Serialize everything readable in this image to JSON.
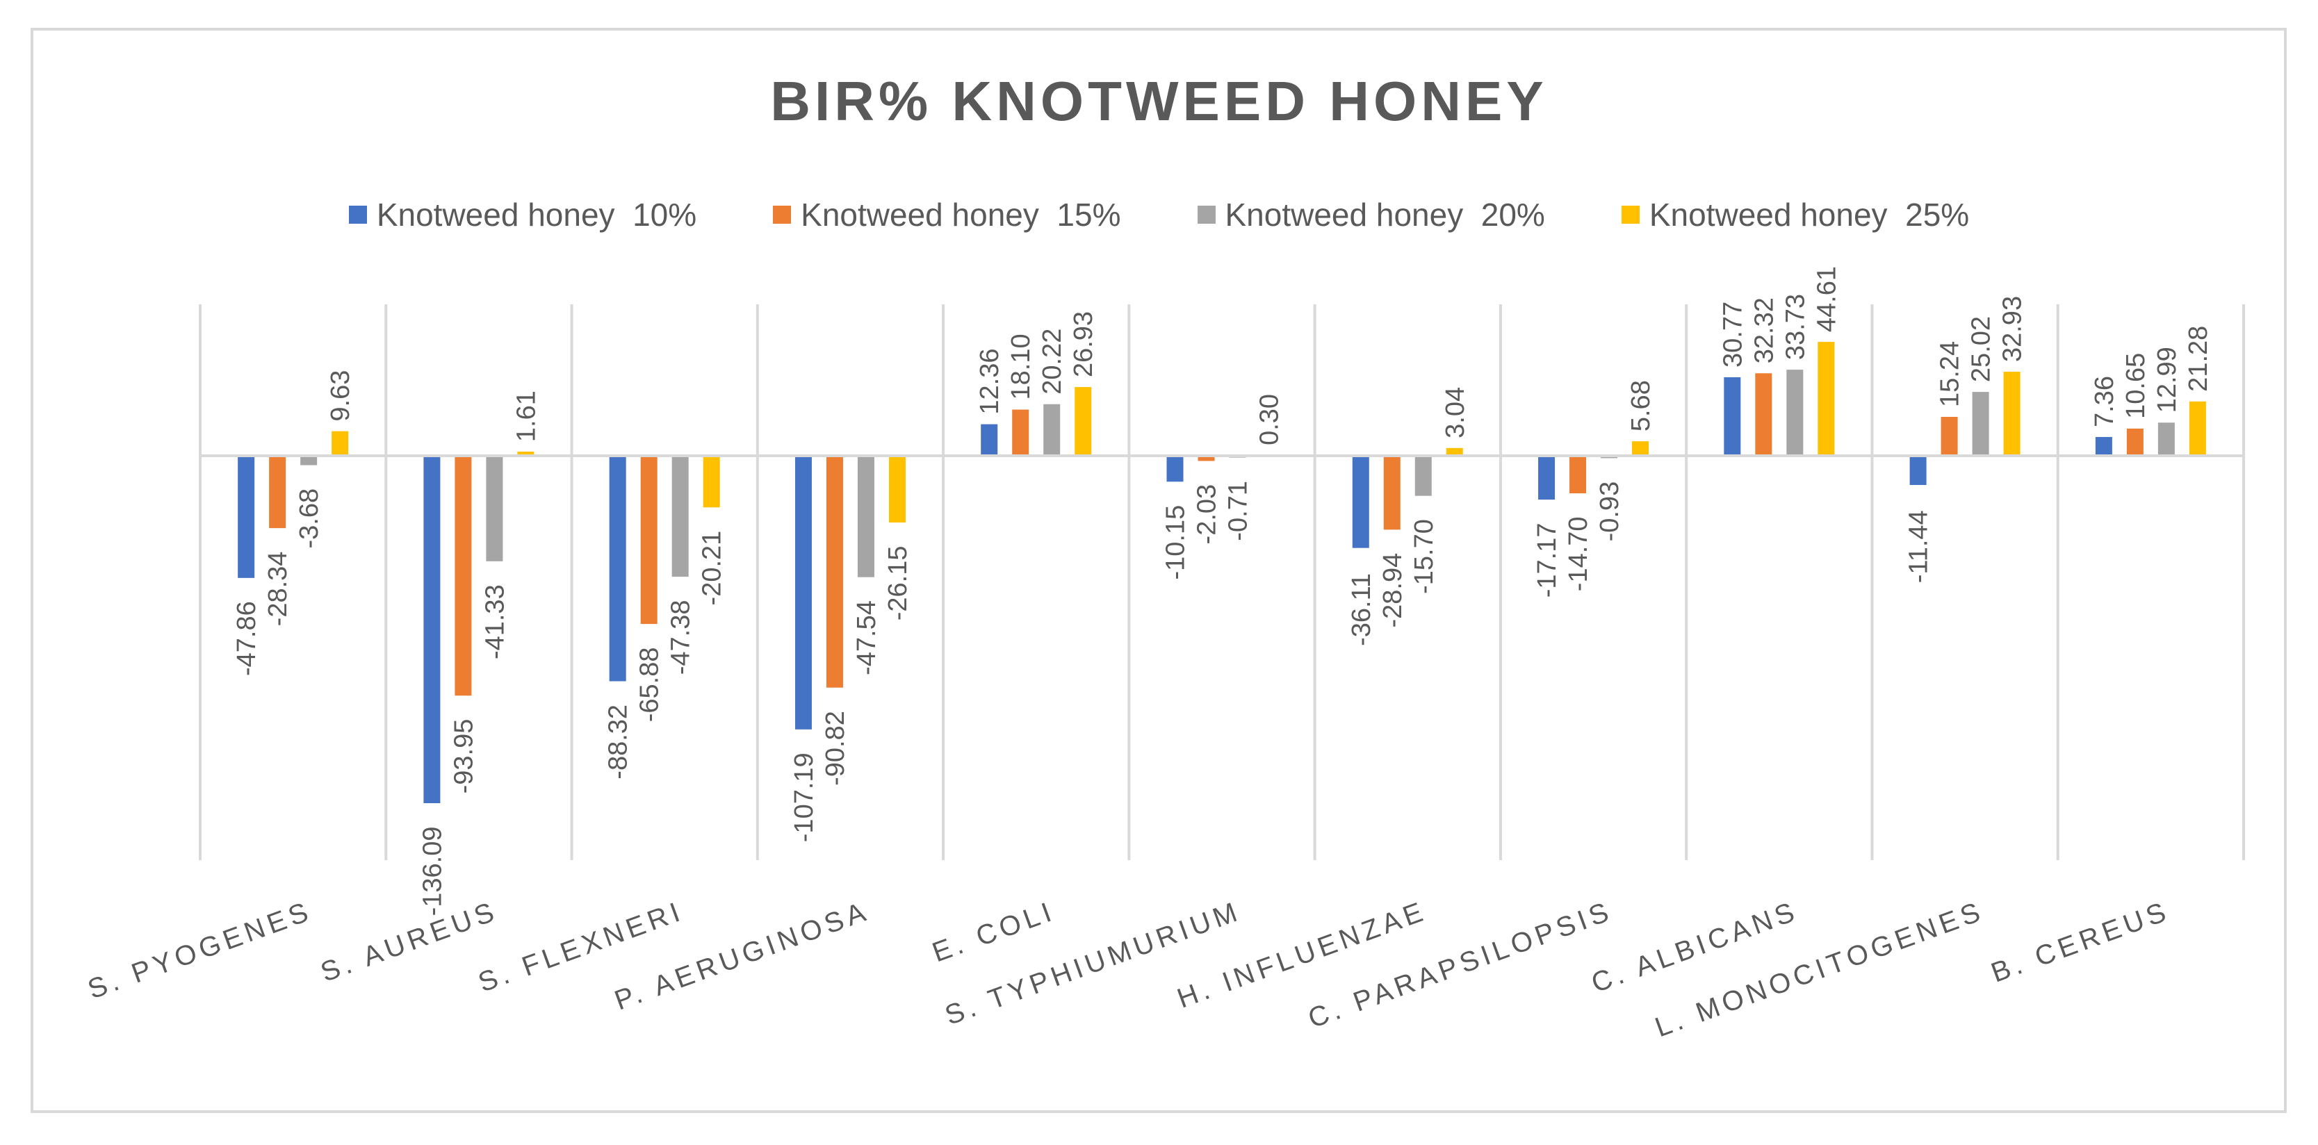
{
  "chart_data": {
    "type": "bar",
    "title": "BIR% KNOTWEED  HONEY",
    "xlabel": "",
    "ylabel": "",
    "ylim": [
      -136.09,
      44.61
    ],
    "grid": false,
    "legend_position": "top",
    "categories": [
      "S. PYOGENES",
      "S. AUREUS",
      "S. FLEXNERI",
      "P. AERUGINOSA",
      "E. COLI",
      "S. TYPHIUMURIUM",
      "H. INFLUENZAE",
      "C. PARAPSILOPSIS",
      "C. ALBICANS",
      "L. MONOCITOGENES",
      "B. CEREUS"
    ],
    "series": [
      {
        "name": "Knotweed honey  10%",
        "color": "#4472c4",
        "values": [
          -47.86,
          -136.09,
          -88.32,
          -107.19,
          12.36,
          -10.15,
          -36.11,
          -17.17,
          30.77,
          -11.44,
          7.36
        ],
        "labels": [
          "-47.86",
          "-136.09",
          "-88.32",
          "-107.19",
          "12.36",
          "-10.15",
          "-36.11",
          "-17.17",
          "30.77",
          "-11.44",
          "7.36"
        ]
      },
      {
        "name": "Knotweed honey  15%",
        "color": "#ed7d31",
        "values": [
          -28.34,
          -93.95,
          -65.88,
          -90.82,
          18.1,
          -2.03,
          -28.94,
          -14.7,
          32.32,
          15.24,
          10.65
        ],
        "labels": [
          "-28.34",
          "-93.95",
          "-65.88",
          "-90.82",
          "18.10",
          "-2.03",
          "-28.94",
          "-14.70",
          "32.32",
          "15.24",
          "10.65"
        ]
      },
      {
        "name": "Knotweed honey  20%",
        "color": "#a5a5a5",
        "values": [
          -3.68,
          -41.33,
          -47.38,
          -47.54,
          20.22,
          -0.71,
          -15.7,
          -0.93,
          33.73,
          25.02,
          12.99
        ],
        "labels": [
          "-3.68",
          "-41.33",
          "-47.38",
          "-47.54",
          "20.22",
          "-0.71",
          "-15.70",
          "-0.93",
          "33.73",
          "25.02",
          "12.99"
        ]
      },
      {
        "name": "Knotweed honey  25%",
        "color": "#ffc000",
        "values": [
          9.63,
          1.61,
          -20.21,
          -26.15,
          26.93,
          0.3,
          3.04,
          5.68,
          44.61,
          32.93,
          21.28
        ],
        "labels": [
          "9.63",
          "1.61",
          "-20.21",
          "-26.15",
          "26.93",
          "0.30",
          "3.04",
          "5.68",
          "44.61",
          "32.93",
          "21.28"
        ]
      }
    ]
  }
}
